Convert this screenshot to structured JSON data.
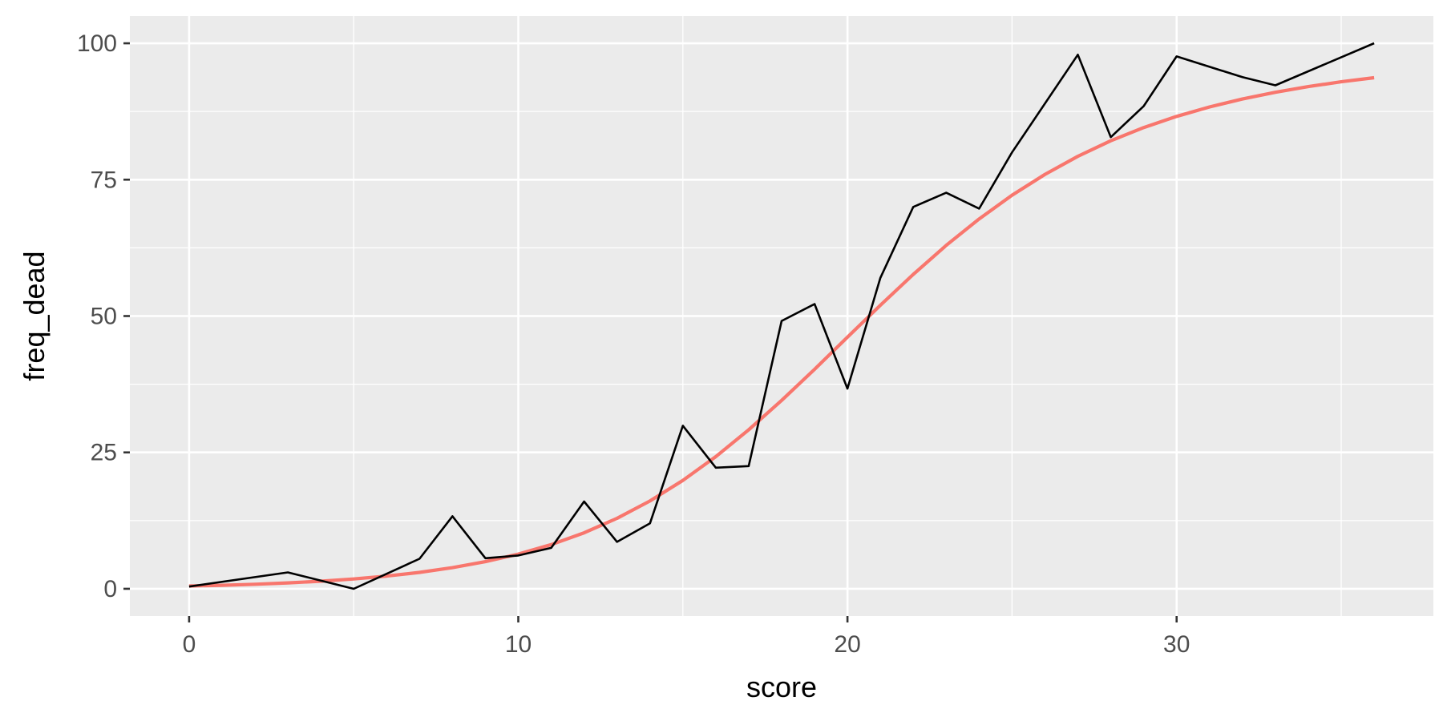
{
  "chart_data": {
    "type": "line",
    "xlabel": "score",
    "ylabel": "freq_dead",
    "xlim": [
      -1.8,
      37.8
    ],
    "ylim": [
      -5,
      105
    ],
    "x_ticks": [
      0,
      10,
      20,
      30
    ],
    "y_ticks": [
      0,
      25,
      50,
      75,
      100
    ],
    "x_tick_labels": [
      "0",
      "10",
      "20",
      "30"
    ],
    "y_tick_labels": [
      "0",
      "25",
      "50",
      "75",
      "100"
    ],
    "grid": true,
    "legend": "none",
    "series": [
      {
        "kind": "observed",
        "color": "#000000",
        "x": [
          0,
          3,
          5,
          7,
          8,
          9,
          10,
          11,
          12,
          13,
          14,
          15,
          16,
          17,
          18,
          19,
          20,
          21,
          22,
          23,
          24,
          25,
          27,
          28,
          29,
          30,
          32,
          33,
          36
        ],
        "y": [
          0.4,
          3,
          0,
          5.5,
          13.3,
          5.6,
          6.1,
          7.5,
          16,
          8.6,
          12,
          29.9,
          22.2,
          22.5,
          49.1,
          52.2,
          36.7,
          57,
          70,
          72.6,
          69.7,
          80,
          97.9,
          82.8,
          88.5,
          97.6,
          93.8,
          92.3,
          100
        ]
      },
      {
        "kind": "fitted",
        "color": "#F8766D",
        "x": [
          0,
          1,
          2,
          3,
          4,
          5,
          6,
          7,
          8,
          9,
          10,
          11,
          12,
          13,
          14,
          15,
          16,
          17,
          18,
          19,
          20,
          21,
          22,
          23,
          24,
          25,
          26,
          27,
          28,
          29,
          30,
          31,
          32,
          33,
          34,
          35,
          36
        ],
        "y": [
          0.5,
          0.64,
          0.83,
          1.08,
          1.39,
          1.8,
          2.33,
          3.0,
          3.87,
          4.97,
          6.35,
          8.1,
          10.26,
          12.91,
          16.1,
          19.87,
          24.23,
          29.14,
          34.53,
          40.24,
          46.12,
          51.98,
          57.64,
          62.95,
          67.8,
          72.14,
          75.96,
          79.28,
          82.13,
          84.55,
          86.6,
          88.33,
          89.79,
          91.02,
          92.06,
          92.94,
          93.69
        ]
      }
    ]
  }
}
